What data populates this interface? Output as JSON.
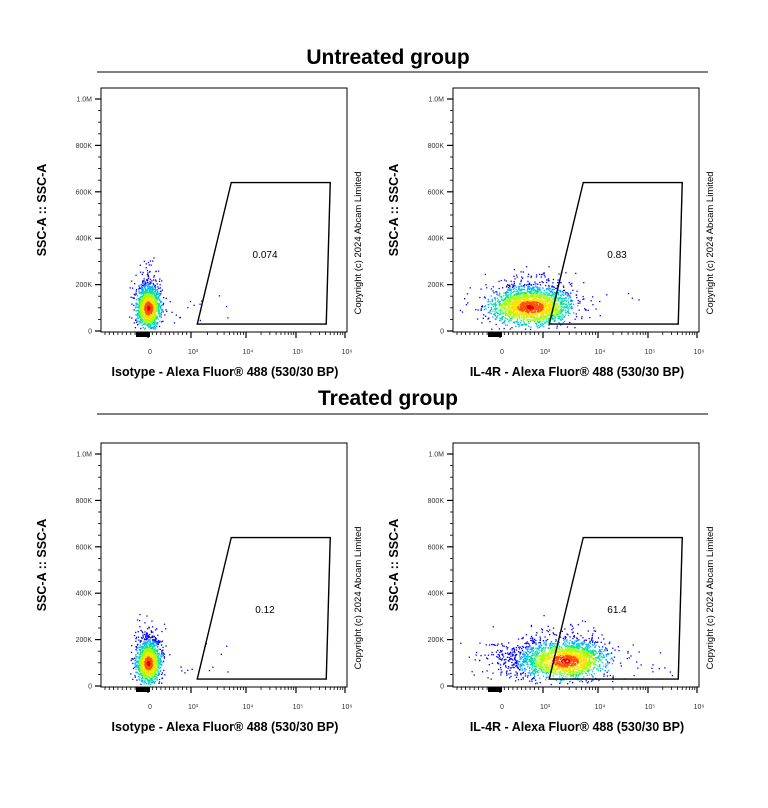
{
  "groups": [
    {
      "title": "Untreated group"
    },
    {
      "title": "Treated group"
    }
  ],
  "chart_data": [
    {
      "type": "scatter",
      "group": "Untreated group",
      "xlabel": "Isotype - Alexa Fluor® 488 (530/30 BP)",
      "ylabel": "SSC-A :: SSC-A",
      "x_scale": "biexponential",
      "xlim": [
        -1000,
        1000000
      ],
      "ylim": [
        0,
        1050000
      ],
      "x_ticks": [
        "0",
        "10³",
        "10⁴",
        "10⁵",
        "10⁶"
      ],
      "y_ticks": [
        "0",
        "200K",
        "400K",
        "600K",
        "800K",
        "1.0M"
      ],
      "gate_percent": "0.074",
      "population": {
        "center_x": 0,
        "center_y": 100000,
        "spread": "narrow"
      },
      "copyright": "Copyright (c) 2024 Abcam Limited"
    },
    {
      "type": "scatter",
      "group": "Untreated group",
      "xlabel": "IL-4R - Alexa Fluor® 488 (530/30 BP)",
      "ylabel": "SSC-A :: SSC-A",
      "x_scale": "biexponential",
      "xlim": [
        -1000,
        1000000
      ],
      "ylim": [
        0,
        1050000
      ],
      "x_ticks": [
        "0",
        "10³",
        "10⁴",
        "10⁵",
        "10⁶"
      ],
      "y_ticks": [
        "0",
        "200K",
        "400K",
        "600K",
        "800K",
        "1.0M"
      ],
      "gate_percent": "0.83",
      "population": {
        "center_x": 700,
        "center_y": 105000,
        "spread": "wide"
      },
      "copyright": "Copyright (c) 2024 Abcam Limited"
    },
    {
      "type": "scatter",
      "group": "Treated group",
      "xlabel": "Isotype - Alexa Fluor® 488 (530/30 BP)",
      "ylabel": "SSC-A :: SSC-A",
      "x_scale": "biexponential",
      "xlim": [
        -1000,
        1000000
      ],
      "ylim": [
        0,
        1050000
      ],
      "x_ticks": [
        "0",
        "10³",
        "10⁴",
        "10⁵",
        "10⁶"
      ],
      "y_ticks": [
        "0",
        "200K",
        "400K",
        "600K",
        "800K",
        "1.0M"
      ],
      "gate_percent": "0.12",
      "population": {
        "center_x": 0,
        "center_y": 100000,
        "spread": "narrow"
      },
      "copyright": "Copyright (c) 2024 Abcam Limited"
    },
    {
      "type": "scatter",
      "group": "Treated group",
      "xlabel": "IL-4R - Alexa Fluor® 488 (530/30 BP)",
      "ylabel": "SSC-A :: SSC-A",
      "x_scale": "biexponential",
      "xlim": [
        -1000,
        1000000
      ],
      "ylim": [
        0,
        1050000
      ],
      "x_ticks": [
        "0",
        "10³",
        "10⁴",
        "10⁵",
        "10⁶"
      ],
      "y_ticks": [
        "0",
        "200K",
        "400K",
        "600K",
        "800K",
        "1.0M"
      ],
      "gate_percent": "61.4",
      "population": {
        "center_x": 2500,
        "center_y": 110000,
        "spread": "wide"
      },
      "copyright": "Copyright (c) 2024 Abcam Limited"
    }
  ],
  "gate": {
    "x_range": [
      1300,
      500000
    ],
    "y_range": [
      30000,
      640000
    ]
  },
  "density_colors": [
    "#0000ff",
    "#00aaff",
    "#00e0a0",
    "#a0ff00",
    "#ffe000",
    "#ff5000",
    "#e00000"
  ]
}
